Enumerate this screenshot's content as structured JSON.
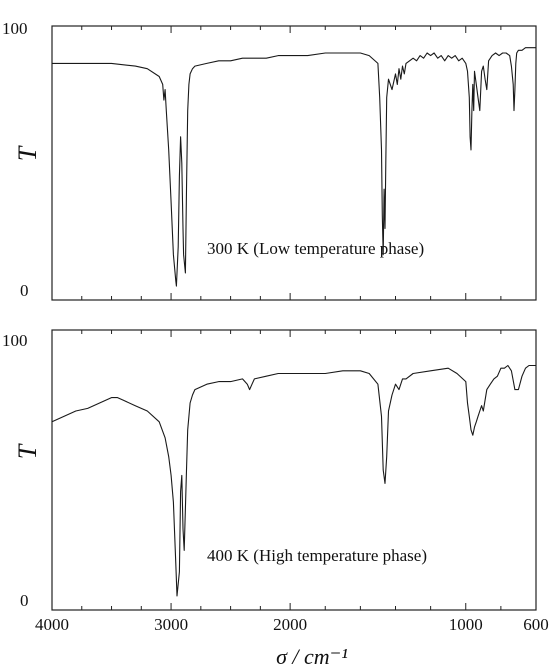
{
  "chart_data": [
    {
      "type": "line",
      "annotation": "300 K (Low temperature phase)",
      "ylabel": "T",
      "xlabel": "",
      "ylim": [
        0,
        100
      ],
      "xlim": [
        4000,
        600
      ],
      "yticks": [
        "0",
        "100"
      ],
      "xticks": [],
      "grid": false,
      "series": [
        {
          "x": [
            4000,
            3800,
            3500,
            3300,
            3200,
            3100,
            3070,
            3060,
            3050,
            3040,
            3020,
            3000,
            2980,
            2960,
            2955,
            2940,
            2930,
            2920,
            2910,
            2900,
            2895,
            2880,
            2870,
            2860,
            2850,
            2840,
            2820,
            2800,
            2700,
            2600,
            2500,
            2400,
            2300,
            2200,
            2100,
            2000,
            1900,
            1800,
            1700,
            1600,
            1550,
            1500,
            1490,
            1480,
            1475,
            1470,
            1465,
            1460,
            1455,
            1450,
            1440,
            1420,
            1400,
            1390,
            1380,
            1370,
            1360,
            1350,
            1340,
            1320,
            1300,
            1280,
            1260,
            1240,
            1220,
            1200,
            1180,
            1160,
            1140,
            1120,
            1100,
            1080,
            1060,
            1040,
            1020,
            1000,
            990,
            980,
            975,
            970,
            965,
            960,
            955,
            950,
            940,
            930,
            920,
            910,
            900,
            890,
            880,
            870,
            850,
            830,
            810,
            790,
            770,
            750,
            740,
            730,
            725,
            720,
            715,
            710,
            700,
            680,
            660,
            640,
            620,
            600
          ],
          "y": [
            88,
            88,
            88,
            87,
            86,
            83,
            80,
            74,
            78,
            70,
            55,
            35,
            15,
            5,
            3,
            18,
            45,
            60,
            50,
            25,
            15,
            8,
            40,
            70,
            80,
            84,
            86,
            87,
            88,
            89,
            89,
            90,
            90,
            90,
            91,
            91,
            91,
            92,
            92,
            92,
            91,
            88,
            75,
            55,
            30,
            15,
            40,
            25,
            50,
            75,
            82,
            78,
            84,
            80,
            86,
            82,
            87,
            84,
            88,
            89,
            90,
            89,
            91,
            90,
            92,
            91,
            92,
            90,
            91,
            89,
            91,
            90,
            91,
            89,
            90,
            88,
            85,
            75,
            60,
            55,
            70,
            80,
            70,
            85,
            80,
            75,
            70,
            85,
            87,
            82,
            78,
            89,
            91,
            92,
            91,
            92,
            92,
            91,
            87,
            80,
            70,
            78,
            88,
            92,
            93,
            93,
            94,
            94,
            94,
            94
          ]
        }
      ]
    },
    {
      "type": "line",
      "annotation": "400 K (High temperature phase)",
      "ylabel": "T",
      "xlabel": "σ / cm⁻¹",
      "ylim": [
        0,
        100
      ],
      "xlim": [
        4000,
        600
      ],
      "yticks": [
        "0",
        "100"
      ],
      "xticks": [
        "4000",
        "3000",
        "2000",
        "1000",
        "600"
      ],
      "grid": false,
      "series": [
        {
          "x": [
            4000,
            3900,
            3800,
            3700,
            3600,
            3500,
            3450,
            3400,
            3300,
            3200,
            3100,
            3050,
            3020,
            3000,
            2980,
            2960,
            2950,
            2930,
            2920,
            2910,
            2900,
            2890,
            2870,
            2860,
            2850,
            2840,
            2820,
            2800,
            2700,
            2600,
            2500,
            2400,
            2360,
            2340,
            2320,
            2300,
            2200,
            2100,
            2000,
            1900,
            1800,
            1700,
            1600,
            1550,
            1500,
            1480,
            1470,
            1460,
            1450,
            1440,
            1420,
            1400,
            1380,
            1360,
            1340,
            1300,
            1200,
            1100,
            1050,
            1000,
            990,
            980,
            970,
            960,
            950,
            940,
            930,
            920,
            910,
            900,
            880,
            860,
            840,
            820,
            800,
            780,
            760,
            740,
            720,
            700,
            680,
            660,
            640,
            620,
            600
          ],
          "y": [
            68,
            70,
            72,
            73,
            75,
            77,
            77,
            76,
            74,
            72,
            68,
            62,
            55,
            48,
            38,
            15,
            3,
            12,
            42,
            48,
            28,
            20,
            50,
            65,
            70,
            75,
            78,
            80,
            82,
            83,
            83,
            84,
            82,
            80,
            82,
            84,
            85,
            86,
            86,
            86,
            86,
            87,
            87,
            86,
            82,
            70,
            50,
            45,
            55,
            72,
            78,
            82,
            80,
            84,
            84,
            86,
            87,
            88,
            86,
            83,
            75,
            70,
            65,
            63,
            66,
            68,
            70,
            72,
            74,
            72,
            80,
            82,
            84,
            85,
            88,
            88,
            89,
            87,
            80,
            80,
            85,
            88,
            89,
            89,
            89
          ]
        }
      ]
    }
  ]
}
